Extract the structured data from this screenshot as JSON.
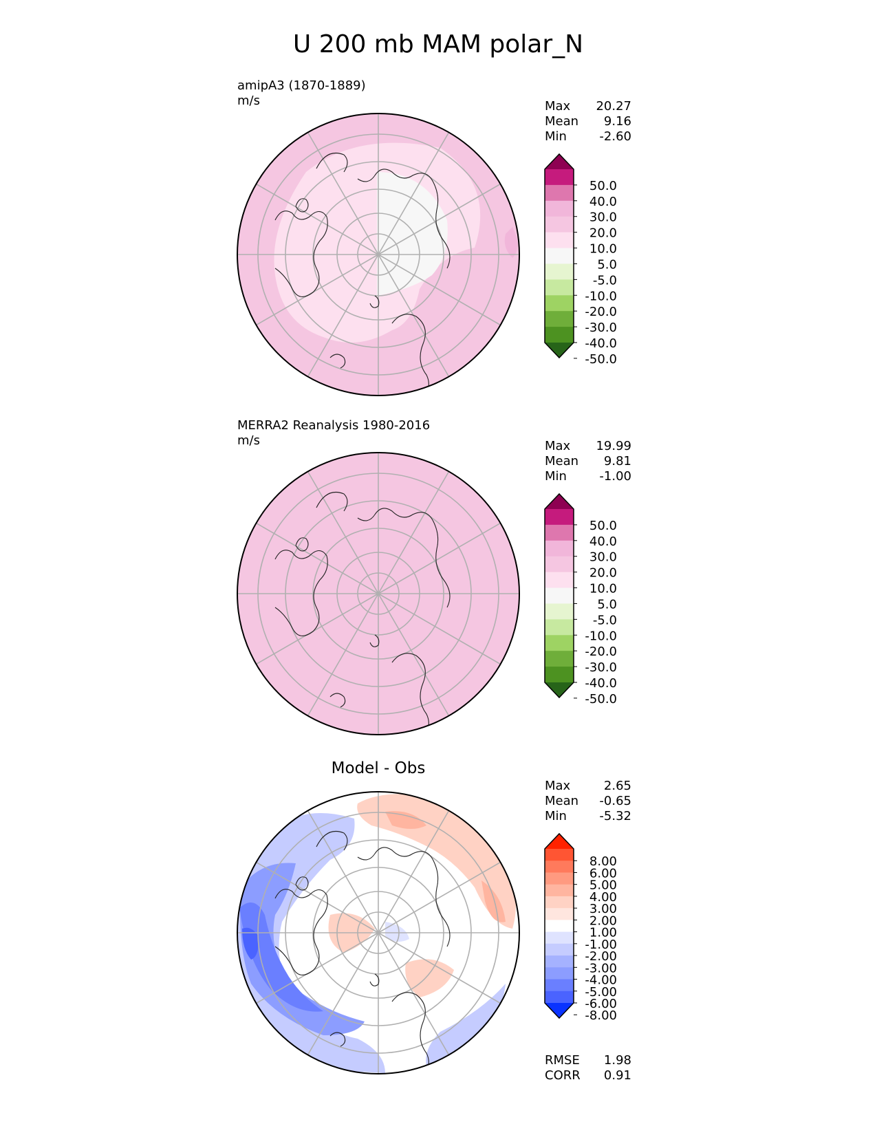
{
  "title": "U 200 mb MAM polar_N",
  "chart_data": [
    {
      "type": "heatmap",
      "projection": "north-polar-stereographic",
      "title": "",
      "subtitle_lines": [
        "amipA3 (1870-1889)",
        "m/s"
      ],
      "stats": [
        {
          "label": "Max",
          "value": "20.27"
        },
        {
          "label": "Mean",
          "value": "9.16"
        },
        {
          "label": "Min",
          "value": "-2.60"
        }
      ],
      "colorbar": {
        "extend": "both",
        "ticks": [
          "50.0",
          "40.0",
          "30.0",
          "20.0",
          "10.0",
          "5.0",
          "-5.0",
          "-10.0",
          "-20.0",
          "-30.0",
          "-40.0",
          "-50.0"
        ],
        "colors": [
          "#8e0152",
          "#c51b7d",
          "#de77ae",
          "#f1b6da",
          "#f5c6e1",
          "#fde0ef",
          "#f7f7f7",
          "#e6f5d0",
          "#c7e9a0",
          "#9ed363",
          "#6fae3a",
          "#4d9221",
          "#276419"
        ]
      }
    },
    {
      "type": "heatmap",
      "projection": "north-polar-stereographic",
      "title": "",
      "subtitle_lines": [
        "MERRA2 Reanalysis 1980-2016",
        "m/s"
      ],
      "stats": [
        {
          "label": "Max",
          "value": "19.99"
        },
        {
          "label": "Mean",
          "value": "9.81"
        },
        {
          "label": "Min",
          "value": "-1.00"
        }
      ],
      "colorbar": {
        "extend": "both",
        "ticks": [
          "50.0",
          "40.0",
          "30.0",
          "20.0",
          "10.0",
          "5.0",
          "-5.0",
          "-10.0",
          "-20.0",
          "-30.0",
          "-40.0",
          "-50.0"
        ],
        "colors": [
          "#8e0152",
          "#c51b7d",
          "#de77ae",
          "#f1b6da",
          "#f5c6e1",
          "#fde0ef",
          "#f7f7f7",
          "#e6f5d0",
          "#c7e9a0",
          "#9ed363",
          "#6fae3a",
          "#4d9221",
          "#276419"
        ]
      }
    },
    {
      "type": "heatmap",
      "projection": "north-polar-stereographic",
      "title": "Model - Obs",
      "subtitle_lines": [],
      "stats": [
        {
          "label": "Max",
          "value": "2.65"
        },
        {
          "label": "Mean",
          "value": "-0.65"
        },
        {
          "label": "Min",
          "value": "-5.32"
        }
      ],
      "bottom_stats": [
        {
          "label": "RMSE",
          "value": "1.98"
        },
        {
          "label": "CORR",
          "value": "0.91"
        }
      ],
      "colorbar": {
        "extend": "both",
        "ticks": [
          "8.00",
          "6.00",
          "5.00",
          "4.00",
          "3.00",
          "2.00",
          "1.00",
          "-1.00",
          "-2.00",
          "-3.00",
          "-4.00",
          "-5.00",
          "-6.00",
          "-8.00"
        ],
        "colors": [
          "#ff2200",
          "#ff5533",
          "#ff7a5c",
          "#ff9a80",
          "#ffb5a0",
          "#ffd2c4",
          "#ffe6df",
          "#ffffff",
          "#dfe3ff",
          "#c5ccff",
          "#a5b2ff",
          "#8c9dff",
          "#6a7fff",
          "#4a63ff",
          "#0a33ff"
        ]
      }
    }
  ]
}
